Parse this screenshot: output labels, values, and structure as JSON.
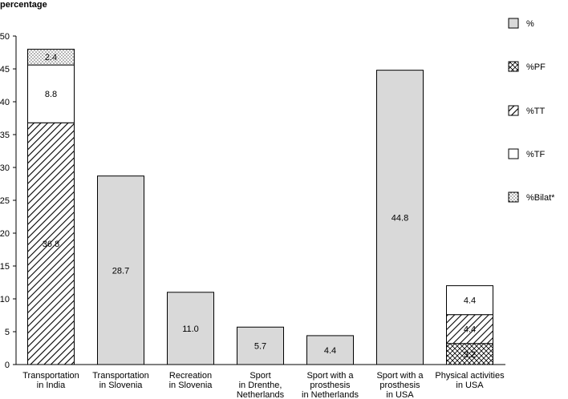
{
  "chart_data": {
    "type": "bar",
    "stacked": true,
    "ylabel": "percentage",
    "ylim": [
      0,
      50
    ],
    "yticks": [
      0,
      5,
      10,
      15,
      20,
      25,
      30,
      35,
      40,
      45,
      50
    ],
    "grid": false,
    "legend_position": "right",
    "categories": [
      "Transportation in India",
      "Transportation in Slovenia",
      "Recreation in Slovenia",
      "Sport in Drenthe, Netherlands",
      "Sport with a prosthesis in Netherlands",
      "Sport with a prosthesis in USA",
      "Physical activities in USA"
    ],
    "category_lines": [
      [
        "Transportation",
        "in India"
      ],
      [
        "Transportation",
        "in Slovenia"
      ],
      [
        "Recreation",
        "in Slovenia"
      ],
      [
        "Sport",
        "in Drenthe,",
        "Netherlands"
      ],
      [
        "Sport with a",
        "prosthesis",
        "in Netherlands"
      ],
      [
        "Sport with a",
        "prosthesis",
        "in USA"
      ],
      [
        "Physical activities",
        "in USA"
      ]
    ],
    "series": [
      {
        "name": "%",
        "pattern": "solid",
        "values": [
          null,
          28.7,
          11.0,
          5.7,
          4.4,
          44.8,
          null
        ],
        "labels": [
          "",
          "28.7",
          "11.0",
          "5.7",
          "4.4",
          "44.8",
          ""
        ]
      },
      {
        "name": "%PF",
        "pattern": "crosshatch",
        "values": [
          null,
          null,
          null,
          null,
          null,
          null,
          3.2
        ],
        "labels": [
          "",
          "",
          "",
          "",
          "",
          "",
          "3.2"
        ]
      },
      {
        "name": "%TT",
        "pattern": "diagonal",
        "values": [
          36.8,
          null,
          null,
          null,
          null,
          null,
          4.4
        ],
        "labels": [
          "36.8",
          "",
          "",
          "",
          "",
          "",
          "4.4"
        ]
      },
      {
        "name": "%TF",
        "pattern": "white",
        "values": [
          8.8,
          null,
          null,
          null,
          null,
          null,
          4.4
        ],
        "labels": [
          "8.8",
          "",
          "",
          "",
          "",
          "",
          "4.4"
        ]
      },
      {
        "name": "%Bilat*",
        "pattern": "dots",
        "values": [
          2.4,
          null,
          null,
          null,
          null,
          null,
          null
        ],
        "labels": [
          "2.4",
          "",
          "",
          "",
          "",
          "",
          ""
        ]
      }
    ],
    "colors": {
      "solid": "#d9d9d9",
      "stroke": "#000000",
      "pattern": "#000000"
    }
  }
}
